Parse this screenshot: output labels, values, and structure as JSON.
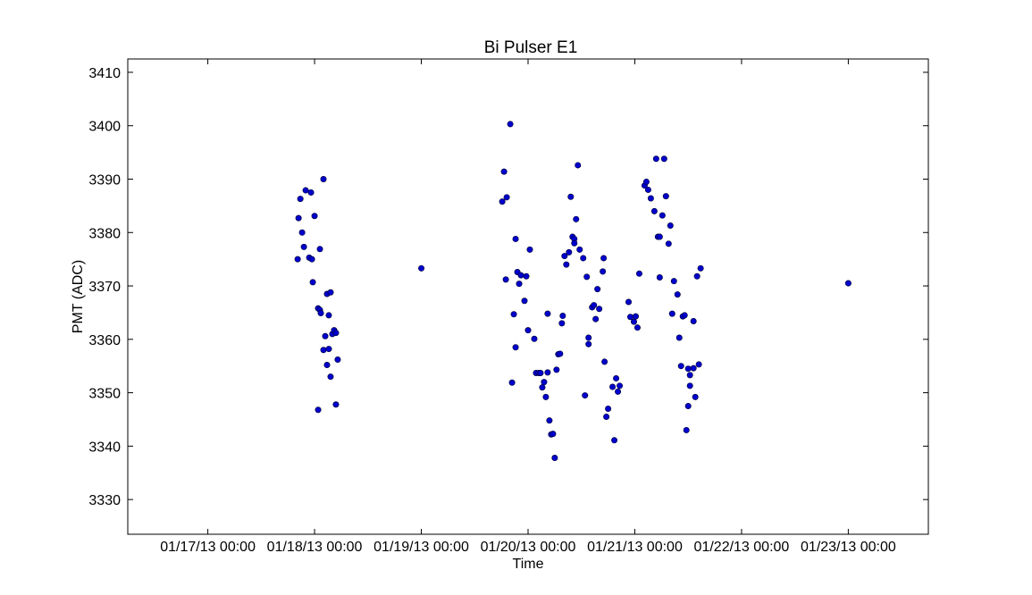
{
  "chart_data": {
    "type": "scatter",
    "title": "Bi Pulser E1",
    "xlabel": "Time",
    "ylabel": "PMT (ADC)",
    "xlim": [
      "01/16/13 06:00",
      "01/23/13 18:00"
    ],
    "ylim": [
      3323.5,
      3412.5
    ],
    "grid": false,
    "legend": "none",
    "marker_color": "#0000cc",
    "x_ticks": [
      "01/17/13 00:00",
      "01/18/13 00:00",
      "01/19/13 00:00",
      "01/20/13 00:00",
      "01/21/13 00:00",
      "01/22/13 00:00",
      "01/23/13 00:00"
    ],
    "y_ticks": [
      3330,
      3340,
      3350,
      3360,
      3370,
      3380,
      3390,
      3400,
      3410
    ],
    "points": [
      [
        "01/17/13 20:12",
        3375.0
      ],
      [
        "01/17/13 20:24",
        3382.7
      ],
      [
        "01/17/13 20:48",
        3386.3
      ],
      [
        "01/17/13 21:12",
        3380.0
      ],
      [
        "01/17/13 21:36",
        3377.3
      ],
      [
        "01/17/13 22:00",
        3387.9
      ],
      [
        "01/17/13 22:48",
        3375.3
      ],
      [
        "01/17/13 23:12",
        3387.5
      ],
      [
        "01/17/13 23:24",
        3375.0
      ],
      [
        "01/17/13 23:36",
        3370.7
      ],
      [
        "01/18/13 00:00",
        3383.1
      ],
      [
        "01/18/13 00:48",
        3346.8
      ],
      [
        "01/18/13 00:48",
        3365.8
      ],
      [
        "01/18/13 01:12",
        3365.5
      ],
      [
        "01/18/13 01:24",
        3364.9
      ],
      [
        "01/18/13 01:12",
        3376.9
      ],
      [
        "01/18/13 02:00",
        3390.0
      ],
      [
        "01/18/13 02:00",
        3358.0
      ],
      [
        "01/18/13 02:24",
        3360.6
      ],
      [
        "01/18/13 02:48",
        3355.2
      ],
      [
        "01/18/13 02:48",
        3368.5
      ],
      [
        "01/18/13 03:12",
        3358.2
      ],
      [
        "01/18/13 03:12",
        3364.5
      ],
      [
        "01/18/13 03:36",
        3368.8
      ],
      [
        "01/18/13 03:36",
        3353.0
      ],
      [
        "01/18/13 04:00",
        3361.0
      ],
      [
        "01/18/13 04:24",
        3361.7
      ],
      [
        "01/18/13 04:48",
        3361.2
      ],
      [
        "01/18/13 04:48",
        3347.8
      ],
      [
        "01/18/13 05:12",
        3356.2
      ],
      [
        "01/19/13 00:00",
        3373.3
      ],
      [
        "01/19/13 18:12",
        3385.8
      ],
      [
        "01/19/13 18:36",
        3391.4
      ],
      [
        "01/19/13 19:00",
        3371.2
      ],
      [
        "01/19/13 19:12",
        3386.6
      ],
      [
        "01/19/13 20:00",
        3400.3
      ],
      [
        "01/19/13 20:24",
        3351.9
      ],
      [
        "01/19/13 20:48",
        3364.7
      ],
      [
        "01/19/13 21:12",
        3358.5
      ],
      [
        "01/19/13 21:12",
        3378.8
      ],
      [
        "01/19/13 21:36",
        3372.6
      ],
      [
        "01/19/13 22:00",
        3370.4
      ],
      [
        "01/19/13 22:24",
        3372.0
      ],
      [
        "01/19/13 23:12",
        3367.2
      ],
      [
        "01/19/13 23:36",
        3371.8
      ],
      [
        "01/20/13 00:00",
        3361.7
      ],
      [
        "01/20/13 00:24",
        3376.8
      ],
      [
        "01/20/13 01:24",
        3360.1
      ],
      [
        "01/20/13 01:48",
        3353.7
      ],
      [
        "01/20/13 02:24",
        3353.7
      ],
      [
        "01/20/13 02:48",
        3353.7
      ],
      [
        "01/20/13 03:12",
        3351.0
      ],
      [
        "01/20/13 03:36",
        3352.0
      ],
      [
        "01/20/13 04:00",
        3349.2
      ],
      [
        "01/20/13 04:24",
        3353.8
      ],
      [
        "01/20/13 04:24",
        3364.8
      ],
      [
        "01/20/13 04:48",
        3344.8
      ],
      [
        "01/20/13 05:12",
        3342.2
      ],
      [
        "01/20/13 05:36",
        3342.3
      ],
      [
        "01/20/13 06:00",
        3337.8
      ],
      [
        "01/20/13 06:24",
        3354.3
      ],
      [
        "01/20/13 06:48",
        3357.2
      ],
      [
        "01/20/13 07:12",
        3357.3
      ],
      [
        "01/20/13 07:36",
        3363.0
      ],
      [
        "01/20/13 07:48",
        3364.4
      ],
      [
        "01/20/13 08:12",
        3375.6
      ],
      [
        "01/20/13 08:36",
        3374.0
      ],
      [
        "01/20/13 09:12",
        3376.3
      ],
      [
        "01/20/13 09:36",
        3386.7
      ],
      [
        "01/20/13 10:00",
        3379.2
      ],
      [
        "01/20/13 10:24",
        3378.8
      ],
      [
        "01/20/13 10:24",
        3378.0
      ],
      [
        "01/20/13 10:48",
        3382.5
      ],
      [
        "01/20/13 11:12",
        3392.6
      ],
      [
        "01/20/13 11:36",
        3376.8
      ],
      [
        "01/20/13 12:24",
        3375.2
      ],
      [
        "01/20/13 12:48",
        3349.5
      ],
      [
        "01/20/13 13:12",
        3371.7
      ],
      [
        "01/20/13 13:36",
        3360.3
      ],
      [
        "01/20/13 13:36",
        3359.1
      ],
      [
        "01/20/13 14:24",
        3366.0
      ],
      [
        "01/20/13 14:48",
        3366.4
      ],
      [
        "01/20/13 15:12",
        3363.8
      ],
      [
        "01/20/13 15:36",
        3369.4
      ],
      [
        "01/20/13 16:00",
        3365.7
      ],
      [
        "01/20/13 17:00",
        3375.2
      ],
      [
        "01/20/13 16:48",
        3372.7
      ],
      [
        "01/20/13 17:12",
        3355.8
      ],
      [
        "01/20/13 17:36",
        3345.5
      ],
      [
        "01/20/13 18:00",
        3347.0
      ],
      [
        "01/20/13 19:00",
        3351.1
      ],
      [
        "01/20/13 19:24",
        3341.1
      ],
      [
        "01/20/13 19:48",
        3352.7
      ],
      [
        "01/20/13 20:12",
        3350.2
      ],
      [
        "01/20/13 20:36",
        3351.3
      ],
      [
        "01/20/13 22:36",
        3367.0
      ],
      [
        "01/20/13 23:00",
        3364.2
      ],
      [
        "01/20/13 23:48",
        3363.3
      ],
      [
        "01/21/13 00:12",
        3364.3
      ],
      [
        "01/21/13 00:36",
        3362.2
      ],
      [
        "01/21/13 01:00",
        3372.3
      ],
      [
        "01/21/13 02:12",
        3388.8
      ],
      [
        "01/21/13 02:36",
        3389.5
      ],
      [
        "01/21/13 03:00",
        3388.0
      ],
      [
        "01/21/13 03:36",
        3386.4
      ],
      [
        "01/21/13 04:24",
        3384.0
      ],
      [
        "01/21/13 04:48",
        3393.8
      ],
      [
        "01/21/13 05:12",
        3379.2
      ],
      [
        "01/21/13 05:36",
        3371.6
      ],
      [
        "01/21/13 05:36",
        3379.2
      ],
      [
        "01/21/13 06:12",
        3383.2
      ],
      [
        "01/21/13 06:36",
        3393.8
      ],
      [
        "01/21/13 07:00",
        3386.8
      ],
      [
        "01/21/13 07:36",
        3377.9
      ],
      [
        "01/21/13 08:00",
        3381.3
      ],
      [
        "01/21/13 08:24",
        3364.8
      ],
      [
        "01/21/13 08:48",
        3370.9
      ],
      [
        "01/21/13 09:36",
        3368.4
      ],
      [
        "01/21/13 10:00",
        3360.3
      ],
      [
        "01/21/13 10:24",
        3355.0
      ],
      [
        "01/21/13 10:48",
        3364.3
      ],
      [
        "01/21/13 11:12",
        3364.5
      ],
      [
        "01/21/13 11:36",
        3343.0
      ],
      [
        "01/21/13 12:00",
        3354.5
      ],
      [
        "01/21/13 12:00",
        3347.5
      ],
      [
        "01/21/13 12:24",
        3353.3
      ],
      [
        "01/21/13 12:24",
        3351.3
      ],
      [
        "01/21/13 13:12",
        3363.4
      ],
      [
        "01/21/13 13:12",
        3354.6
      ],
      [
        "01/21/13 13:36",
        3349.2
      ],
      [
        "01/21/13 14:00",
        3371.8
      ],
      [
        "01/21/13 14:24",
        3355.3
      ],
      [
        "01/21/13 14:48",
        3373.3
      ],
      [
        "01/23/13 00:00",
        3370.5
      ]
    ]
  }
}
